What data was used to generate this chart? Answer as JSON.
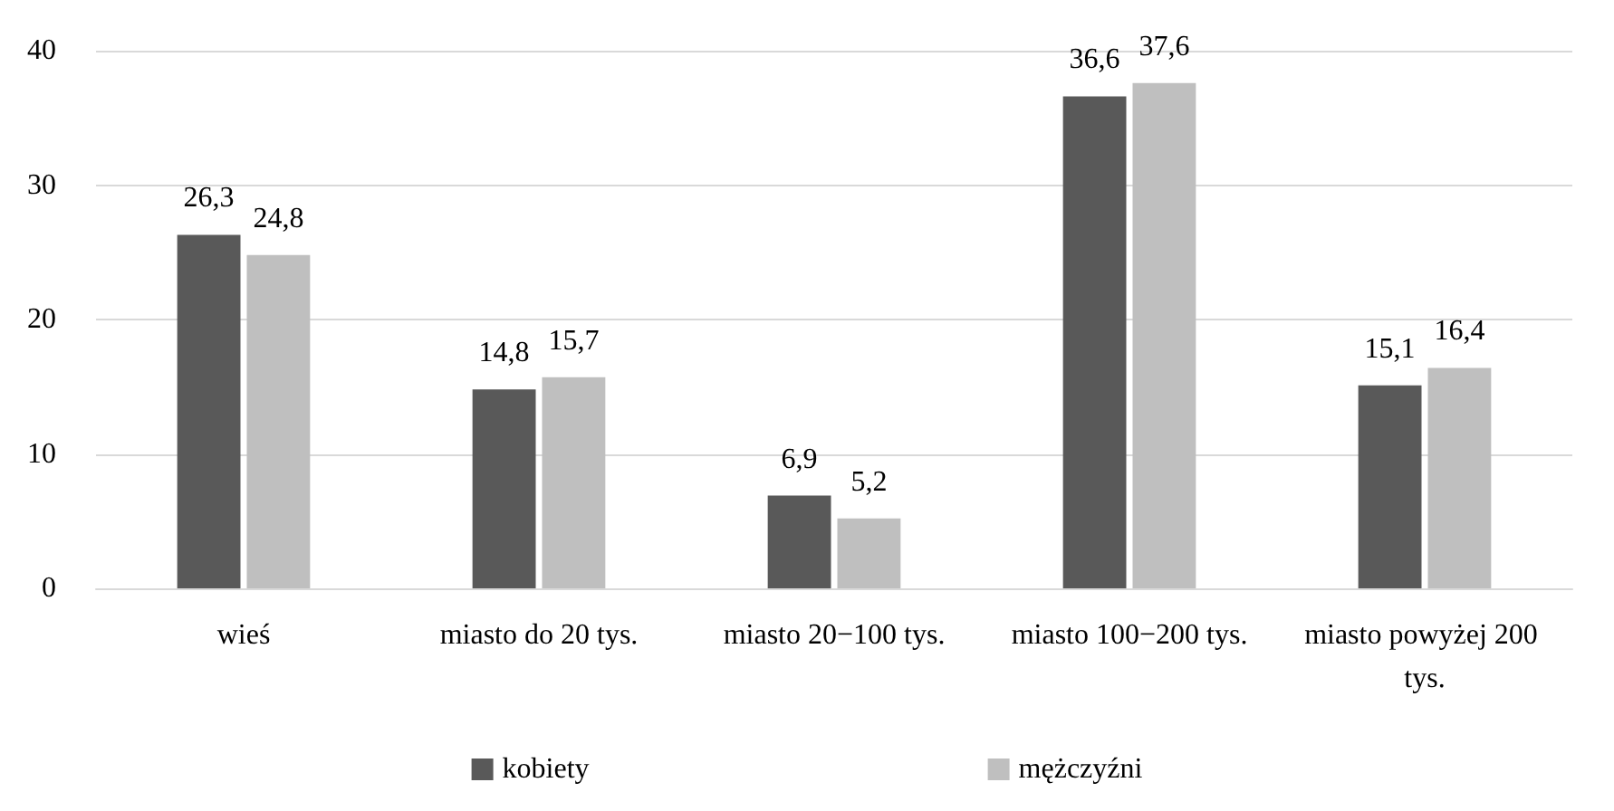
{
  "chart_data": {
    "type": "bar",
    "categories": [
      "wieś",
      "miasto do 20 tys.",
      "miasto 20−100 tys.",
      "miasto 100−200 tys.",
      "miasto powyżej 200 tys."
    ],
    "series": [
      {
        "name": "kobiety",
        "color": "#595959",
        "values": [
          26.3,
          14.8,
          6.9,
          36.6,
          15.1
        ],
        "value_labels": [
          "26,3",
          "14,8",
          "6,9",
          "36,6",
          "15,1"
        ]
      },
      {
        "name": "mężczyźni",
        "color": "#bfbfbf",
        "values": [
          24.8,
          15.7,
          5.2,
          37.6,
          16.4
        ],
        "value_labels": [
          "24,8",
          "15,7",
          "5,2",
          "37,6",
          "16,4"
        ]
      }
    ],
    "ylim": [
      0,
      40
    ],
    "yticks": [
      0,
      10,
      20,
      30,
      40
    ],
    "grid": "y",
    "legend": "bottom"
  }
}
